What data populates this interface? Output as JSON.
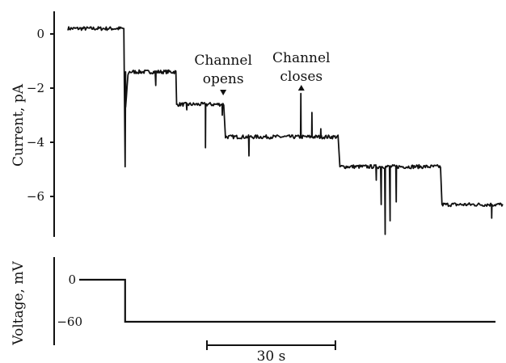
{
  "chart_data": [
    {
      "type": "line",
      "ylabel": "Current, pA",
      "ylim": [
        -7.5,
        1
      ],
      "yticks": [
        0,
        -2,
        -4,
        -6
      ],
      "ytick_labels": [
        "0",
        "−2",
        "−4",
        "−6"
      ],
      "grid": false,
      "series": [
        {
          "levels": [
            {
              "t_start": 0,
              "t_end": 12.7,
              "current": 0.2
            },
            {
              "t_start": 13.0,
              "t_end": 24.5,
              "current": -1.4
            },
            {
              "t_start": 24.5,
              "t_end": 35.2,
              "current": -2.6
            },
            {
              "t_start": 35.5,
              "t_end": 61.0,
              "current": -3.8
            },
            {
              "t_start": 61.3,
              "t_end": 84.0,
              "current": -4.9
            },
            {
              "t_start": 84.3,
              "t_end": 98.0,
              "current": -6.3
            }
          ],
          "spikes": [
            {
              "t": 12.9,
              "current": -4.9
            },
            {
              "t": 19.8,
              "current": -1.9
            },
            {
              "t": 26.8,
              "current": -2.8
            },
            {
              "t": 31.0,
              "current": -4.2
            },
            {
              "t": 34.8,
              "current": -3.0
            },
            {
              "t": 40.8,
              "current": -4.5
            },
            {
              "t": 52.5,
              "current": -2.2
            },
            {
              "t": 55.0,
              "current": -2.9
            },
            {
              "t": 57.0,
              "current": -3.5
            },
            {
              "t": 69.5,
              "current": -5.4
            },
            {
              "t": 70.6,
              "current": -6.3
            },
            {
              "t": 71.5,
              "current": -7.4
            },
            {
              "t": 72.6,
              "current": -6.9
            },
            {
              "t": 74.0,
              "current": -6.2
            },
            {
              "t": 95.5,
              "current": -6.8
            }
          ]
        }
      ],
      "annotations": [
        {
          "text": "Channel",
          "text2": "opens",
          "t": 35.0,
          "current": -2.6,
          "arrow": "down"
        },
        {
          "text": "Channel",
          "text2": "closes",
          "t": 52.6,
          "current": -2.2,
          "arrow": "up"
        }
      ]
    },
    {
      "type": "line",
      "ylabel": "Voltage, mV",
      "yticks": [
        0,
        -60
      ],
      "ytick_labels": [
        "0",
        "−60"
      ],
      "grid": false,
      "series": [
        {
          "t": [
            0,
            12.9,
            12.9,
            98.0
          ],
          "voltage": [
            0,
            0,
            -60,
            -60
          ]
        }
      ],
      "scale_bar": {
        "length_s": 30,
        "label": "30 s"
      }
    }
  ]
}
